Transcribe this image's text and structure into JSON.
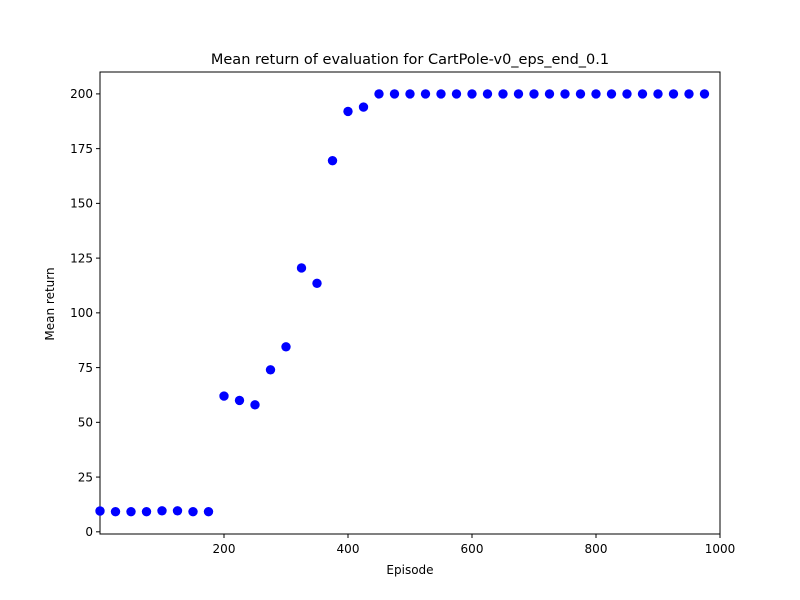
{
  "chart_data": {
    "type": "scatter",
    "title": "Mean return of evaluation for CartPole-v0_eps_end_0.1",
    "xlabel": "Episode",
    "ylabel": "Mean return",
    "xlim": [
      0,
      1000
    ],
    "ylim": [
      -1,
      210
    ],
    "x_ticks": [
      200,
      400,
      600,
      800,
      1000
    ],
    "y_ticks": [
      0,
      25,
      50,
      75,
      100,
      125,
      150,
      175,
      200
    ],
    "grid": false,
    "legend": "none",
    "marker_color": "#0000ff",
    "series": [
      {
        "x": [
          0,
          25,
          50,
          75,
          100,
          125,
          150,
          175,
          200,
          225,
          250,
          275,
          300,
          325,
          350,
          375,
          400,
          425,
          450,
          475,
          500,
          525,
          550,
          575,
          600,
          625,
          650,
          675,
          700,
          725,
          750,
          775,
          800,
          825,
          850,
          875,
          900,
          925,
          950,
          975
        ],
        "y": [
          9.5,
          9.2,
          9.2,
          9.2,
          9.6,
          9.6,
          9.2,
          9.2,
          62,
          60,
          58,
          74,
          84.5,
          120.5,
          113.5,
          169.5,
          192,
          194,
          200,
          200,
          200,
          200,
          200,
          200,
          200,
          200,
          200,
          200,
          200,
          200,
          200,
          200,
          200,
          200,
          200,
          200,
          200,
          200,
          200,
          200
        ]
      }
    ]
  }
}
